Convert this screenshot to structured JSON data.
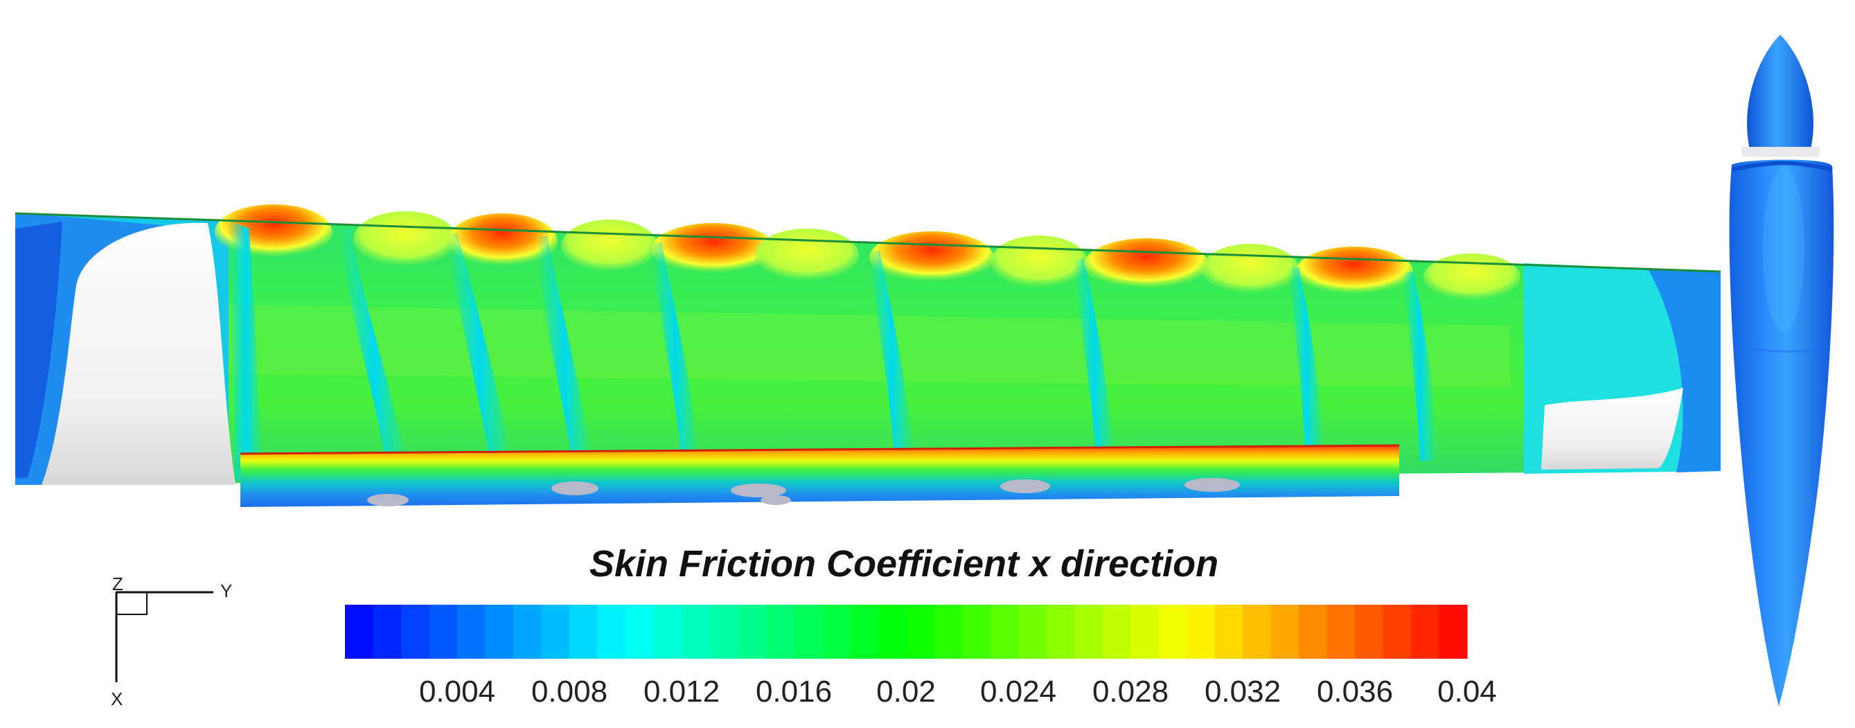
{
  "legend": {
    "title": "Skin Friction Coefficient x direction",
    "ticks": [
      "0.004",
      "0.008",
      "0.012",
      "0.016",
      "0.02",
      "0.024",
      "0.028",
      "0.032",
      "0.036",
      "0.04"
    ],
    "range": [
      0,
      0.04
    ],
    "bands": 40,
    "colormap": [
      "#0000ff",
      "#00ffff",
      "#00ff00",
      "#ffff00",
      "#ff0000"
    ]
  },
  "triad": {
    "x": "X",
    "y": "Y",
    "z": "Z"
  }
}
